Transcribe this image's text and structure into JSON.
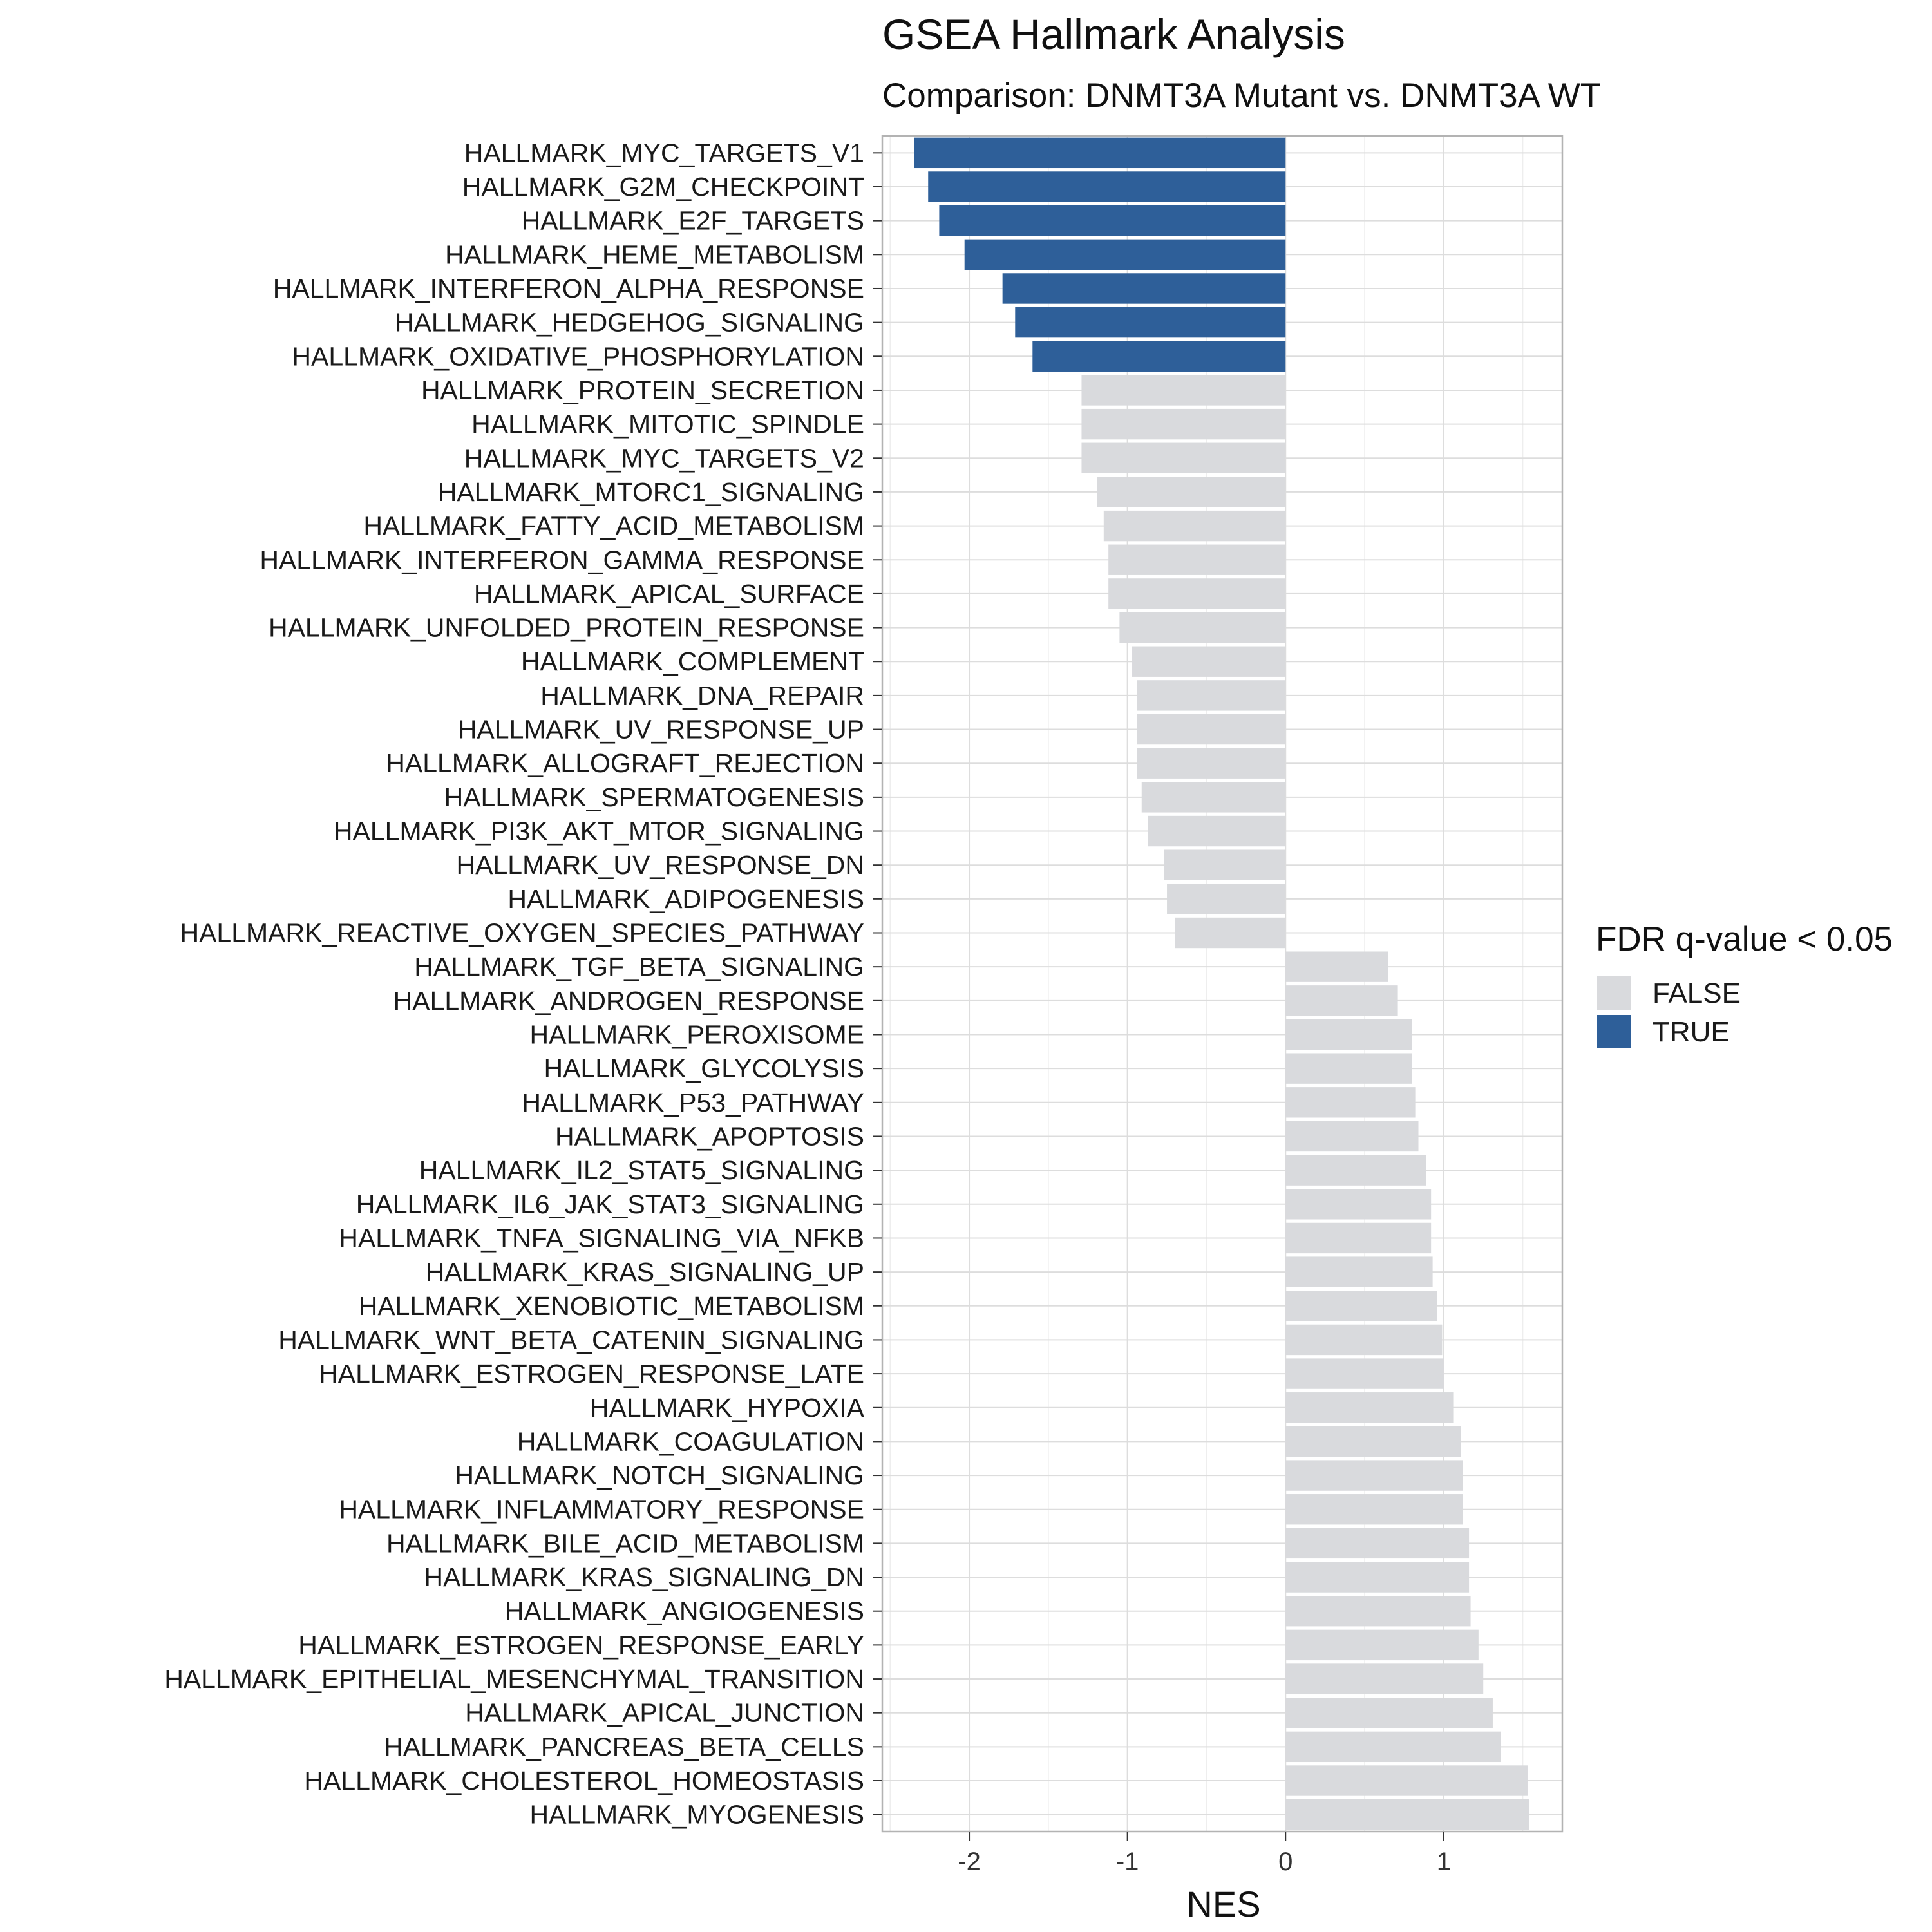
{
  "chart_data": {
    "type": "bar",
    "orientation": "horizontal",
    "title": "GSEA Hallmark Analysis",
    "subtitle": "Comparison: DNMT3A Mutant vs. DNMT3A WT",
    "xlabel": "NES",
    "ylabel": "",
    "xlim": [
      -2.55,
      1.75
    ],
    "x_ticks": [
      -2,
      -1,
      0,
      1
    ],
    "x_tick_labels": [
      "-2",
      "-1",
      "0",
      "1"
    ],
    "grid": true,
    "legend": {
      "title": "FDR q-value < 0.05",
      "position": "right",
      "entries": [
        {
          "label": "FALSE",
          "color": "#d9dadd"
        },
        {
          "label": "TRUE",
          "color": "#2e5f99"
        }
      ]
    },
    "categories": [
      "HALLMARK_MYC_TARGETS_V1",
      "HALLMARK_G2M_CHECKPOINT",
      "HALLMARK_E2F_TARGETS",
      "HALLMARK_HEME_METABOLISM",
      "HALLMARK_INTERFERON_ALPHA_RESPONSE",
      "HALLMARK_HEDGEHOG_SIGNALING",
      "HALLMARK_OXIDATIVE_PHOSPHORYLATION",
      "HALLMARK_PROTEIN_SECRETION",
      "HALLMARK_MITOTIC_SPINDLE",
      "HALLMARK_MYC_TARGETS_V2",
      "HALLMARK_MTORC1_SIGNALING",
      "HALLMARK_FATTY_ACID_METABOLISM",
      "HALLMARK_INTERFERON_GAMMA_RESPONSE",
      "HALLMARK_APICAL_SURFACE",
      "HALLMARK_UNFOLDED_PROTEIN_RESPONSE",
      "HALLMARK_COMPLEMENT",
      "HALLMARK_DNA_REPAIR",
      "HALLMARK_UV_RESPONSE_UP",
      "HALLMARK_ALLOGRAFT_REJECTION",
      "HALLMARK_SPERMATOGENESIS",
      "HALLMARK_PI3K_AKT_MTOR_SIGNALING",
      "HALLMARK_UV_RESPONSE_DN",
      "HALLMARK_ADIPOGENESIS",
      "HALLMARK_REACTIVE_OXYGEN_SPECIES_PATHWAY",
      "HALLMARK_TGF_BETA_SIGNALING",
      "HALLMARK_ANDROGEN_RESPONSE",
      "HALLMARK_PEROXISOME",
      "HALLMARK_GLYCOLYSIS",
      "HALLMARK_P53_PATHWAY",
      "HALLMARK_APOPTOSIS",
      "HALLMARK_IL2_STAT5_SIGNALING",
      "HALLMARK_IL6_JAK_STAT3_SIGNALING",
      "HALLMARK_TNFA_SIGNALING_VIA_NFKB",
      "HALLMARK_KRAS_SIGNALING_UP",
      "HALLMARK_XENOBIOTIC_METABOLISM",
      "HALLMARK_WNT_BETA_CATENIN_SIGNALING",
      "HALLMARK_ESTROGEN_RESPONSE_LATE",
      "HALLMARK_HYPOXIA",
      "HALLMARK_COAGULATION",
      "HALLMARK_NOTCH_SIGNALING",
      "HALLMARK_INFLAMMATORY_RESPONSE",
      "HALLMARK_BILE_ACID_METABOLISM",
      "HALLMARK_KRAS_SIGNALING_DN",
      "HALLMARK_ANGIOGENESIS",
      "HALLMARK_ESTROGEN_RESPONSE_EARLY",
      "HALLMARK_EPITHELIAL_MESENCHYMAL_TRANSITION",
      "HALLMARK_APICAL_JUNCTION",
      "HALLMARK_PANCREAS_BETA_CELLS",
      "HALLMARK_CHOLESTEROL_HOMEOSTASIS",
      "HALLMARK_MYOGENESIS"
    ],
    "values": [
      -2.35,
      -2.26,
      -2.19,
      -2.03,
      -1.79,
      -1.71,
      -1.6,
      -1.29,
      -1.29,
      -1.29,
      -1.19,
      -1.15,
      -1.12,
      -1.12,
      -1.05,
      -0.97,
      -0.94,
      -0.94,
      -0.94,
      -0.91,
      -0.87,
      -0.77,
      -0.75,
      -0.7,
      0.65,
      0.71,
      0.8,
      0.8,
      0.82,
      0.84,
      0.89,
      0.92,
      0.92,
      0.93,
      0.96,
      0.99,
      1.0,
      1.06,
      1.11,
      1.12,
      1.12,
      1.16,
      1.16,
      1.17,
      1.22,
      1.25,
      1.31,
      1.36,
      1.53,
      1.54
    ],
    "significant": [
      true,
      true,
      true,
      true,
      true,
      true,
      true,
      false,
      false,
      false,
      false,
      false,
      false,
      false,
      false,
      false,
      false,
      false,
      false,
      false,
      false,
      false,
      false,
      false,
      false,
      false,
      false,
      false,
      false,
      false,
      false,
      false,
      false,
      false,
      false,
      false,
      false,
      false,
      false,
      false,
      false,
      false,
      false,
      false,
      false,
      false,
      false,
      false,
      false,
      false
    ]
  }
}
